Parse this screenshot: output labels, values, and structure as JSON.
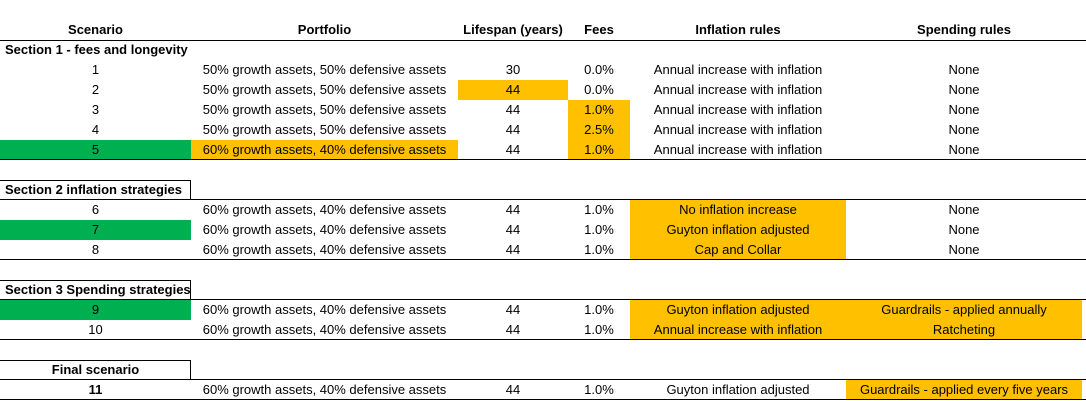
{
  "headers": {
    "scenario": "Scenario",
    "portfolio": "Portfolio",
    "lifespan": "Lifespan (years)",
    "fees": "Fees",
    "inflation": "Inflation rules",
    "spending": "Spending rules"
  },
  "sections": [
    {
      "title": "Section 1 - fees and longevity"
    },
    {
      "title": "Section 2 inflation strategies"
    },
    {
      "title": "Section 3 Spending strategies"
    },
    {
      "title": "Final scenario"
    }
  ],
  "rows": [
    {
      "scenario": "1",
      "portfolio": "50% growth assets, 50% defensive assets",
      "lifespan": "30",
      "fees": "0.0%",
      "inflation": "Annual increase with inflation",
      "spending": "None"
    },
    {
      "scenario": "2",
      "portfolio": "50% growth assets, 50% defensive assets",
      "lifespan": "44",
      "fees": "0.0%",
      "inflation": "Annual increase with inflation",
      "spending": "None"
    },
    {
      "scenario": "3",
      "portfolio": "50% growth assets, 50% defensive assets",
      "lifespan": "44",
      "fees": "1.0%",
      "inflation": "Annual increase with inflation",
      "spending": "None"
    },
    {
      "scenario": "4",
      "portfolio": "50% growth assets, 50% defensive assets",
      "lifespan": "44",
      "fees": "2.5%",
      "inflation": "Annual increase with inflation",
      "spending": "None"
    },
    {
      "scenario": "5",
      "portfolio": "60% growth assets, 40% defensive assets",
      "lifespan": "44",
      "fees": "1.0%",
      "inflation": "Annual increase with inflation",
      "spending": "None"
    },
    {
      "scenario": "6",
      "portfolio": "60% growth assets, 40% defensive assets",
      "lifespan": "44",
      "fees": "1.0%",
      "inflation": "No inflation increase",
      "spending": "None"
    },
    {
      "scenario": "7",
      "portfolio": "60% growth assets, 40% defensive assets",
      "lifespan": "44",
      "fees": "1.0%",
      "inflation": "Guyton inflation adjusted",
      "spending": "None"
    },
    {
      "scenario": "8",
      "portfolio": "60% growth assets, 40% defensive assets",
      "lifespan": "44",
      "fees": "1.0%",
      "inflation": "Cap and Collar",
      "spending": "None"
    },
    {
      "scenario": "9",
      "portfolio": "60% growth assets, 40% defensive assets",
      "lifespan": "44",
      "fees": "1.0%",
      "inflation": "Guyton inflation adjusted",
      "spending": "Guardrails - applied annually"
    },
    {
      "scenario": "10",
      "portfolio": "60% growth assets, 40% defensive assets",
      "lifespan": "44",
      "fees": "1.0%",
      "inflation": "Annual increase with inflation",
      "spending": "Ratcheting"
    },
    {
      "scenario": "11",
      "portfolio": "60% growth assets, 40% defensive assets",
      "lifespan": "44",
      "fees": "1.0%",
      "inflation": "Guyton inflation adjusted",
      "spending": "Guardrails - applied every five years"
    }
  ],
  "colors": {
    "highlight_orange": "#ffc000",
    "highlight_green": "#00b050",
    "grid_line": "#000000"
  }
}
